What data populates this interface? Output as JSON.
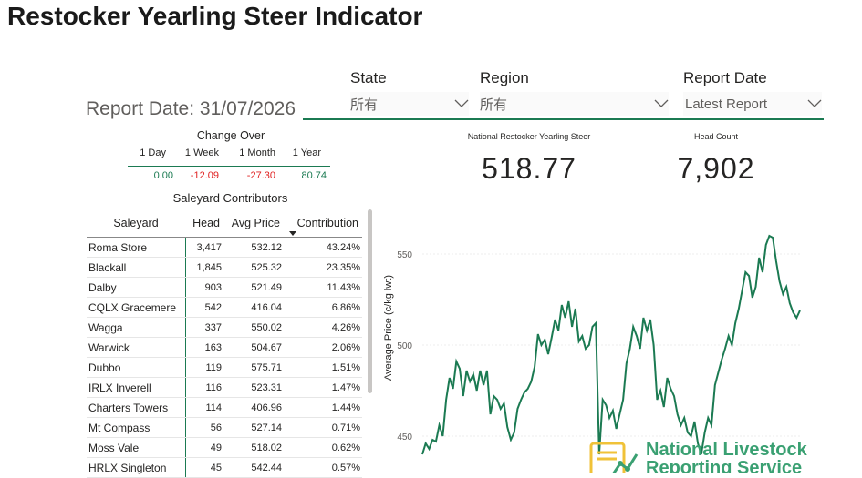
{
  "title": "Restocker Yearling Steer Indicator",
  "report_date_label": "Report Date: 31/07/2026",
  "filters": {
    "state": {
      "label": "State",
      "value": "所有"
    },
    "region": {
      "label": "Region",
      "value": "所有"
    },
    "report_date": {
      "label": "Report Date",
      "value": "Latest Report"
    }
  },
  "kpis": {
    "indicator": {
      "label": "National Restocker Yearling Steer",
      "value": "518.77"
    },
    "head_count": {
      "label": "Head Count",
      "value": "7,902"
    }
  },
  "change_over": {
    "title": "Change Over",
    "periods": [
      {
        "label": "1 Day",
        "value": "0.00",
        "trend": "pos"
      },
      {
        "label": "1 Week",
        "value": "-12.09",
        "trend": "neg"
      },
      {
        "label": "1 Month",
        "value": "-27.30",
        "trend": "neg"
      },
      {
        "label": "1 Year",
        "value": "80.74",
        "trend": "pos"
      }
    ]
  },
  "saleyard": {
    "title": "Saleyard Contributors",
    "headers": {
      "saleyard": "Saleyard",
      "head": "Head",
      "avg_price": "Avg Price",
      "contribution": "Contribution"
    },
    "rows": [
      {
        "name": "Roma Store",
        "head": "3,417",
        "price": "532.12",
        "contribution": "43.24%"
      },
      {
        "name": "Blackall",
        "head": "1,845",
        "price": "525.32",
        "contribution": "23.35%"
      },
      {
        "name": "Dalby",
        "head": "903",
        "price": "521.49",
        "contribution": "11.43%"
      },
      {
        "name": "CQLX Gracemere",
        "head": "542",
        "price": "416.04",
        "contribution": "6.86%"
      },
      {
        "name": "Wagga",
        "head": "337",
        "price": "550.02",
        "contribution": "4.26%"
      },
      {
        "name": "Warwick",
        "head": "163",
        "price": "504.67",
        "contribution": "2.06%"
      },
      {
        "name": "Dubbo",
        "head": "119",
        "price": "575.71",
        "contribution": "1.51%"
      },
      {
        "name": "IRLX Inverell",
        "head": "116",
        "price": "523.31",
        "contribution": "1.47%"
      },
      {
        "name": "Charters Towers",
        "head": "114",
        "price": "406.96",
        "contribution": "1.44%"
      },
      {
        "name": "Mt Compass",
        "head": "56",
        "price": "527.14",
        "contribution": "0.71%"
      },
      {
        "name": "Moss Vale",
        "head": "49",
        "price": "518.02",
        "contribution": "0.62%"
      },
      {
        "name": "HRLX Singleton",
        "head": "45",
        "price": "542.44",
        "contribution": "0.57%"
      }
    ]
  },
  "logo": {
    "line1": "National Livestock",
    "line2": "Reporting Service"
  },
  "colors": {
    "accent": "#1b7a52",
    "negative": "#e02020",
    "logo": "#3aa072"
  },
  "chart_data": {
    "type": "line",
    "ylabel": "Average Price (c/kg lwt)",
    "xlabel": "",
    "yticks": [
      450,
      500,
      550
    ],
    "ylim": [
      440,
      565
    ],
    "grid": true,
    "series": [
      {
        "color": "#1b7a52",
        "y": [
          440,
          446,
          443,
          448,
          447,
          456,
          450,
          470,
          482,
          476,
          491,
          487,
          472,
          486,
          480,
          484,
          475,
          486,
          478,
          486,
          462,
          472,
          470,
          465,
          468,
          455,
          448,
          452,
          465,
          470,
          474,
          476,
          480,
          488,
          506,
          500,
          503,
          495,
          504,
          514,
          508,
          522,
          515,
          524,
          510,
          520,
          502,
          505,
          498,
          500,
          510,
          512,
          440,
          470,
          467,
          460,
          464,
          454,
          462,
          470,
          490,
          498,
          510,
          505,
          498,
          515,
          508,
          514,
          500,
          470,
          475,
          466,
          482,
          476,
          472,
          462,
          456,
          460,
          452,
          450,
          458,
          446,
          440,
          452,
          460,
          456,
          478,
          485,
          492,
          498,
          505,
          500,
          512,
          520,
          530,
          540,
          538,
          526,
          532,
          548,
          540,
          555,
          560,
          559,
          546,
          535,
          528,
          532,
          523,
          518,
          515,
          519
        ]
      }
    ]
  }
}
